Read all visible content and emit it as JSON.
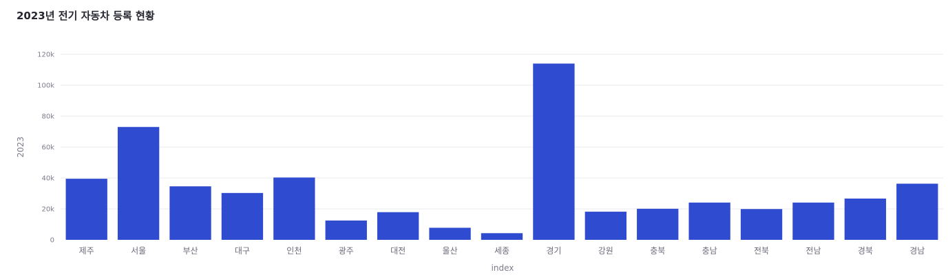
{
  "chart_data": {
    "type": "bar",
    "title": "2023년 전기 자동차 등록 현황",
    "xlabel": "index",
    "ylabel": "2023",
    "ylim": [
      0,
      120000
    ],
    "yticks": [
      0,
      20000,
      40000,
      60000,
      80000,
      100000,
      120000
    ],
    "ytick_labels": [
      "0",
      "20k",
      "40k",
      "60k",
      "80k",
      "100k",
      "120k"
    ],
    "categories": [
      "제주",
      "서울",
      "부산",
      "대구",
      "인천",
      "광주",
      "대전",
      "울산",
      "세종",
      "경기",
      "강원",
      "충북",
      "충남",
      "전북",
      "전남",
      "경북",
      "경남"
    ],
    "values": [
      39500,
      73000,
      34600,
      30300,
      40300,
      12500,
      17900,
      7800,
      4300,
      114000,
      18200,
      20100,
      24100,
      19900,
      24100,
      26700,
      36300
    ],
    "bar_color": "#2f4bcf",
    "grid": true
  }
}
